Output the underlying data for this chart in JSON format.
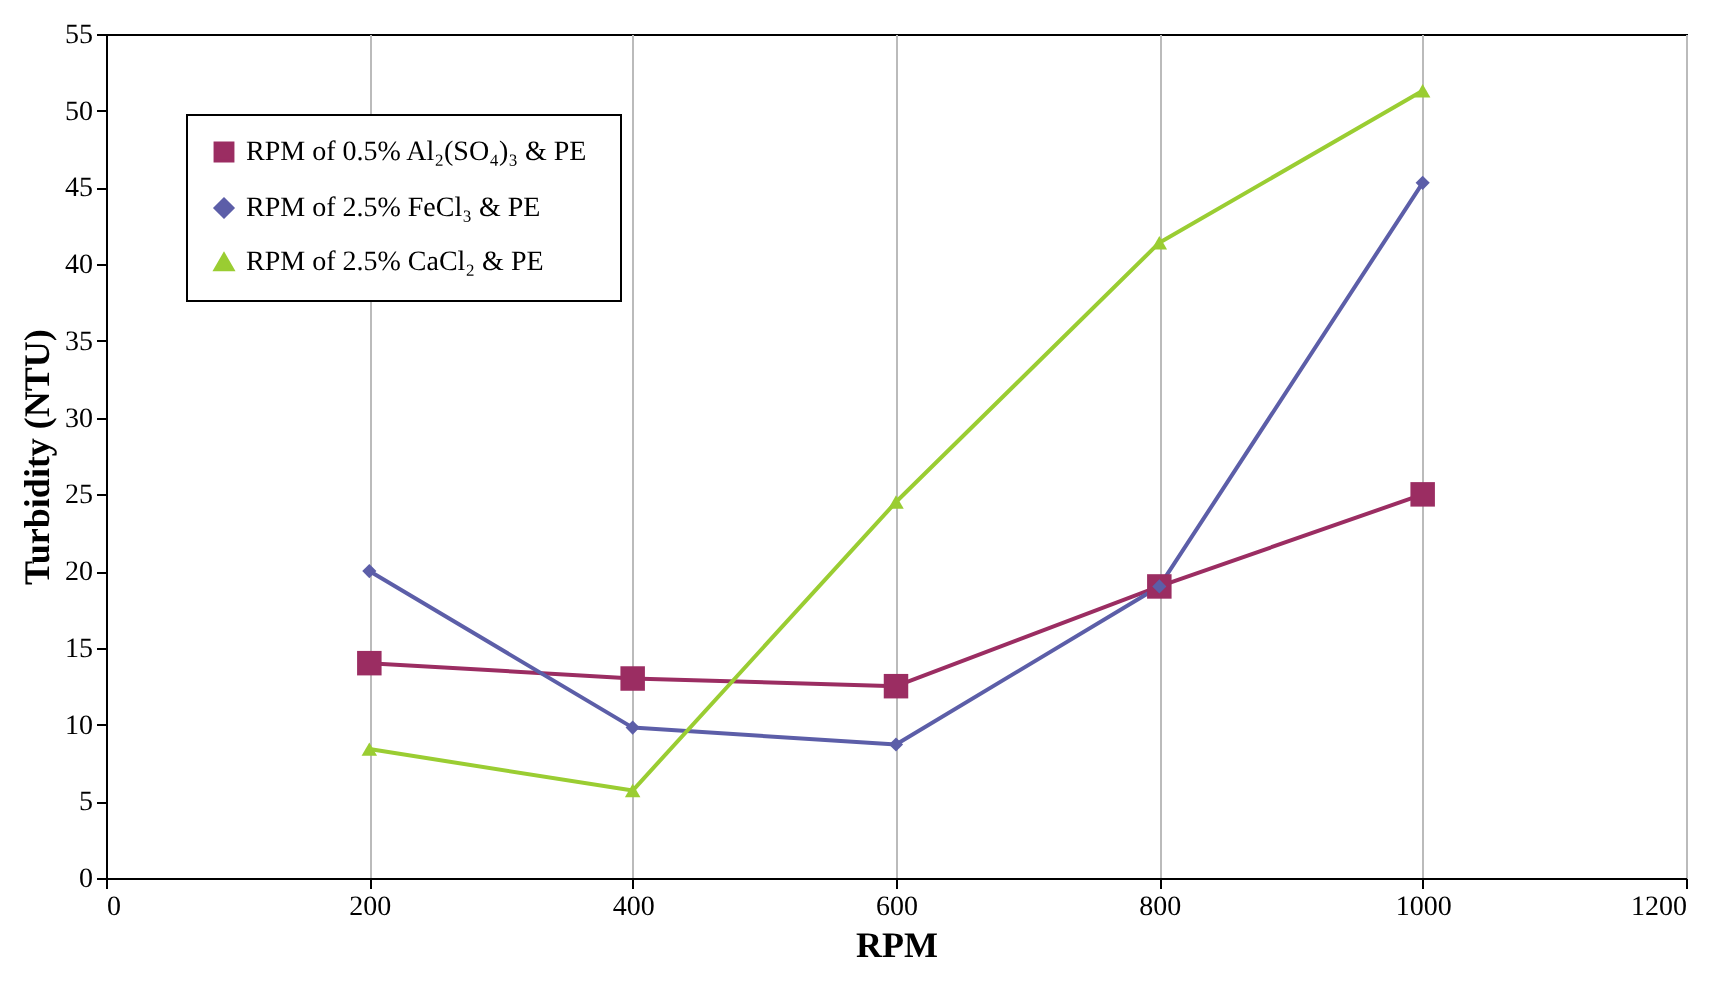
{
  "chart_data": {
    "type": "line",
    "xlabel": "RPM",
    "ylabel": "Turbidity (NTU)",
    "x": [
      200,
      400,
      600,
      800,
      1000
    ],
    "series": [
      {
        "name": "RPM of  0.5% Al₂(SO₄)₃ & PE",
        "color": "#9b2d62",
        "marker": "square",
        "values": [
          14,
          13,
          12.5,
          19,
          25
        ]
      },
      {
        "name": "RPM of  2.5% FeCl₃ & PE",
        "color": "#5c5ea8",
        "marker": "diamond",
        "values": [
          20,
          9.8,
          8.7,
          19,
          45.3
        ]
      },
      {
        "name": "RPM of 2.5% CaCl₂ & PE",
        "color": "#9acd32",
        "marker": "triangle",
        "values": [
          8.4,
          5.7,
          24.5,
          41.4,
          51.3
        ]
      }
    ],
    "xlim": [
      0,
      1200
    ],
    "xticks": [
      0,
      200,
      400,
      600,
      800,
      1000,
      1200
    ],
    "ylim": [
      0,
      55
    ],
    "yticks": [
      0,
      5,
      10,
      15,
      20,
      25,
      30,
      35,
      40,
      45,
      50,
      55
    ],
    "grid": "x",
    "legend": "top left",
    "line_style": "solid"
  }
}
